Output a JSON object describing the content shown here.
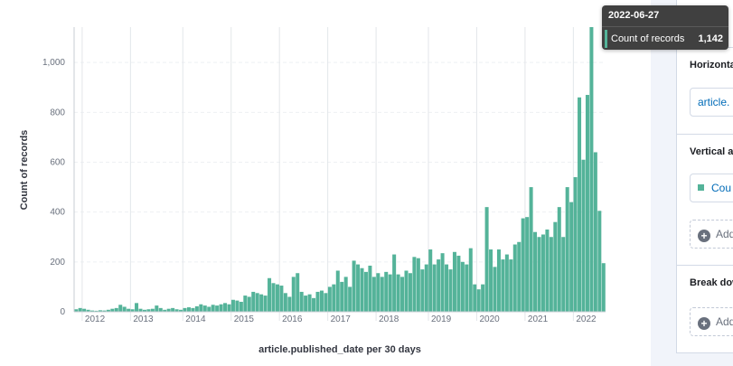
{
  "chart_data": {
    "type": "bar",
    "y_label": "Count of records",
    "x_label": "article.published_date per 30 days",
    "color": "#54b399",
    "grid": true,
    "ylim": [
      0,
      1142
    ],
    "yticks": [
      0,
      200,
      400,
      600,
      800,
      {
        "value": 1000,
        "label": "1,000"
      }
    ],
    "categories": [
      null,
      null,
      "2012",
      null,
      null,
      null,
      null,
      null,
      null,
      null,
      null,
      null,
      null,
      null,
      "2013",
      null,
      null,
      null,
      null,
      null,
      null,
      null,
      null,
      null,
      null,
      null,
      null,
      "2014",
      null,
      null,
      null,
      null,
      null,
      null,
      null,
      null,
      null,
      null,
      null,
      "2015",
      null,
      null,
      null,
      null,
      null,
      null,
      null,
      null,
      null,
      null,
      null,
      "2016",
      null,
      null,
      null,
      null,
      null,
      null,
      null,
      null,
      null,
      null,
      null,
      "2017",
      null,
      null,
      null,
      null,
      null,
      null,
      null,
      null,
      null,
      null,
      null,
      "2018",
      null,
      null,
      null,
      null,
      null,
      null,
      null,
      null,
      null,
      null,
      null,
      null,
      "2019",
      null,
      null,
      null,
      null,
      null,
      null,
      null,
      null,
      null,
      null,
      null,
      "2020",
      null,
      null,
      null,
      null,
      null,
      null,
      null,
      null,
      null,
      null,
      null,
      "2021",
      null,
      null,
      null,
      null,
      null,
      null,
      null,
      null,
      null,
      null,
      null,
      "2022",
      null,
      null,
      null,
      null,
      null,
      null,
      null
    ],
    "values": [
      10,
      15,
      12,
      8,
      5,
      4,
      6,
      5,
      8,
      12,
      15,
      28,
      20,
      12,
      10,
      35,
      12,
      8,
      10,
      12,
      25,
      15,
      8,
      12,
      15,
      10,
      8,
      15,
      18,
      15,
      22,
      30,
      25,
      20,
      28,
      25,
      30,
      35,
      30,
      48,
      45,
      40,
      65,
      60,
      80,
      75,
      70,
      65,
      135,
      115,
      110,
      105,
      75,
      60,
      140,
      155,
      80,
      65,
      70,
      55,
      80,
      85,
      75,
      100,
      110,
      165,
      120,
      140,
      100,
      205,
      190,
      175,
      160,
      185,
      140,
      155,
      140,
      160,
      150,
      230,
      150,
      140,
      165,
      155,
      220,
      215,
      170,
      190,
      250,
      190,
      210,
      235,
      190,
      170,
      240,
      225,
      200,
      190,
      255,
      110,
      90,
      110,
      420,
      250,
      180,
      250,
      210,
      230,
      210,
      270,
      280,
      375,
      380,
      500,
      320,
      300,
      310,
      330,
      300,
      360,
      420,
      300,
      500,
      440,
      540,
      860,
      610,
      870,
      1142,
      640,
      405,
      195
    ],
    "tooltip": {
      "title": "2022-06-27",
      "label": "Count of records",
      "value": "1,142"
    }
  },
  "panel": {
    "horizontal_title": "Horizonta",
    "horizontal_field": "article.",
    "vertical_title": "Vertical a",
    "vertical_field": "Cou",
    "vertical_add": "Add",
    "breakdown_title": "Break dow",
    "breakdown_add": "Add"
  }
}
